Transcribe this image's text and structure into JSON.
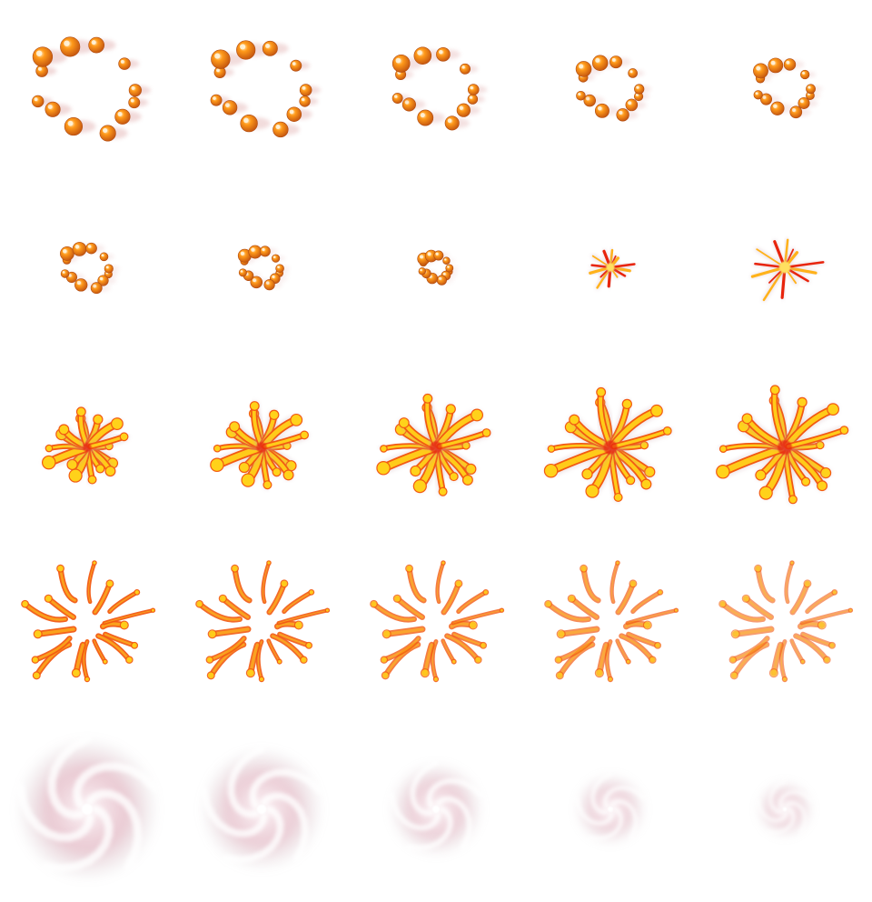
{
  "sprite_sheet": {
    "columns": 5,
    "rows": 5,
    "frame_count": 25,
    "background": "#ffffff",
    "colors": {
      "bubble_core": "#ff9a1a",
      "bubble_rim": "#c85a10",
      "bubble_highlight": "#ffe9c0",
      "flame_outer": "#f25a12",
      "flame_inner": "#ffd21a",
      "flame_hot": "#e8240c",
      "smoke_pink": "#d9a0b0",
      "smoke_grey": "#c9c0c4"
    },
    "phases": [
      {
        "name": "bubble-ring-shrink",
        "frames": [
          1,
          2,
          3,
          4,
          5,
          6,
          7,
          8
        ]
      },
      {
        "name": "spark-burst",
        "frames": [
          9,
          10
        ]
      },
      {
        "name": "flame-splash-grow",
        "frames": [
          11,
          12,
          13,
          14,
          15
        ]
      },
      {
        "name": "flame-splash-fade",
        "frames": [
          16,
          17,
          18,
          19,
          20
        ]
      },
      {
        "name": "smoke-swirl-shrink",
        "frames": [
          21,
          22,
          23,
          24,
          25
        ]
      }
    ],
    "frames": [
      {
        "index": 1,
        "phase": "bubble-ring-shrink",
        "scale": 1.0,
        "opacity": 1.0,
        "icon": "bubble-ring"
      },
      {
        "index": 2,
        "phase": "bubble-ring-shrink",
        "scale": 0.92,
        "opacity": 1.0,
        "icon": "bubble-ring"
      },
      {
        "index": 3,
        "phase": "bubble-ring-shrink",
        "scale": 0.78,
        "opacity": 1.0,
        "icon": "bubble-ring"
      },
      {
        "index": 4,
        "phase": "bubble-ring-shrink",
        "scale": 0.6,
        "opacity": 1.0,
        "icon": "bubble-ring"
      },
      {
        "index": 5,
        "phase": "bubble-ring-shrink",
        "scale": 0.54,
        "opacity": 1.0,
        "icon": "bubble-ring"
      },
      {
        "index": 6,
        "phase": "bubble-ring-shrink",
        "scale": 0.45,
        "opacity": 1.0,
        "icon": "bubble-ring"
      },
      {
        "index": 7,
        "phase": "bubble-ring-shrink",
        "scale": 0.38,
        "opacity": 1.0,
        "icon": "bubble-ring"
      },
      {
        "index": 8,
        "phase": "bubble-ring-shrink",
        "scale": 0.28,
        "opacity": 1.0,
        "icon": "bubble-ring"
      },
      {
        "index": 9,
        "phase": "spark-burst",
        "scale": 0.45,
        "opacity": 1.0,
        "icon": "spark-burst"
      },
      {
        "index": 10,
        "phase": "spark-burst",
        "scale": 0.72,
        "opacity": 1.0,
        "icon": "spark-burst"
      },
      {
        "index": 11,
        "phase": "flame-splash-grow",
        "scale": 0.62,
        "opacity": 1.0,
        "icon": "flame-splash"
      },
      {
        "index": 12,
        "phase": "flame-splash-grow",
        "scale": 0.72,
        "opacity": 1.0,
        "icon": "flame-splash"
      },
      {
        "index": 13,
        "phase": "flame-splash-grow",
        "scale": 0.85,
        "opacity": 1.0,
        "icon": "flame-splash"
      },
      {
        "index": 14,
        "phase": "flame-splash-grow",
        "scale": 0.96,
        "opacity": 1.0,
        "icon": "flame-splash"
      },
      {
        "index": 15,
        "phase": "flame-splash-grow",
        "scale": 1.0,
        "opacity": 1.0,
        "icon": "flame-splash"
      },
      {
        "index": 16,
        "phase": "flame-splash-fade",
        "scale": 1.05,
        "opacity": 0.95,
        "icon": "flame-streaks"
      },
      {
        "index": 17,
        "phase": "flame-splash-fade",
        "scale": 1.05,
        "opacity": 0.9,
        "icon": "flame-streaks"
      },
      {
        "index": 18,
        "phase": "flame-splash-fade",
        "scale": 1.05,
        "opacity": 0.8,
        "icon": "flame-streaks"
      },
      {
        "index": 19,
        "phase": "flame-splash-fade",
        "scale": 1.05,
        "opacity": 0.7,
        "icon": "flame-streaks"
      },
      {
        "index": 20,
        "phase": "flame-splash-fade",
        "scale": 1.05,
        "opacity": 0.6,
        "icon": "flame-streaks"
      },
      {
        "index": 21,
        "phase": "smoke-swirl-shrink",
        "scale": 1.0,
        "opacity": 0.75,
        "icon": "smoke-swirl"
      },
      {
        "index": 22,
        "phase": "smoke-swirl-shrink",
        "scale": 0.86,
        "opacity": 0.7,
        "icon": "smoke-swirl"
      },
      {
        "index": 23,
        "phase": "smoke-swirl-shrink",
        "scale": 0.66,
        "opacity": 0.65,
        "icon": "smoke-swirl"
      },
      {
        "index": 24,
        "phase": "smoke-swirl-shrink",
        "scale": 0.5,
        "opacity": 0.6,
        "icon": "smoke-swirl"
      },
      {
        "index": 25,
        "phase": "smoke-swirl-shrink",
        "scale": 0.4,
        "opacity": 0.55,
        "icon": "smoke-swirl"
      }
    ]
  }
}
